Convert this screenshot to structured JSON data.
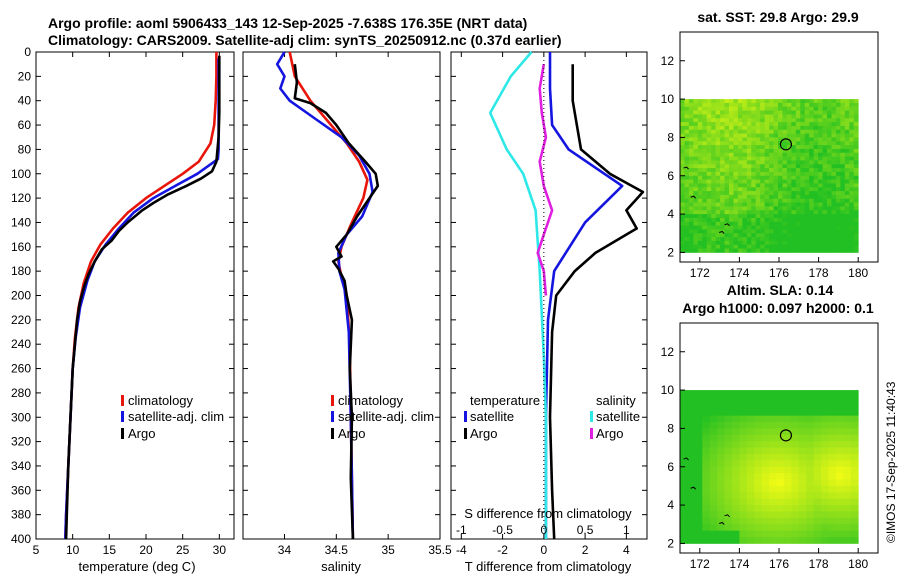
{
  "title_line1": "Argo profile: aoml 5906433_143 12-Sep-2025 -7.638S 176.35E (NRT data)",
  "title_line2": "Climatology: CARS2009. Satellite-adj clim: synTS_20250912.nc (0.37d earlier)",
  "stamp": "©IMOS 17-Sep-2025 11:40:43",
  "colors": {
    "climatology": "#e8150a",
    "satellite": "#1515e0",
    "argo": "#000000",
    "cyan": "#2ee8e8",
    "magenta": "#e020e0",
    "map_green": "#22c022",
    "map_yellow": "#ffff00"
  },
  "chart_data": [
    {
      "id": "temperature",
      "type": "line",
      "xlabel": "temperature (deg C)",
      "ylabel": "",
      "xlim": [
        5,
        32
      ],
      "ylim": [
        400,
        0
      ],
      "xticks": [
        5,
        10,
        15,
        20,
        25,
        30
      ],
      "xtick_labels": [
        "5",
        "10",
        "15",
        "20",
        "25",
        "30"
      ],
      "yticks": [
        0,
        20,
        40,
        60,
        80,
        100,
        120,
        140,
        160,
        180,
        200,
        220,
        240,
        260,
        280,
        300,
        320,
        340,
        360,
        380,
        400
      ],
      "ytick_labels": [
        "0",
        "20",
        "40",
        "60",
        "80",
        "100",
        "120",
        "140",
        "160",
        "180",
        "200",
        "220",
        "240",
        "260",
        "280",
        "300",
        "320",
        "340",
        "360",
        "380",
        "400"
      ],
      "legend": [
        "climatology",
        "satellite-adj. clim",
        "Argo"
      ],
      "series": [
        {
          "name": "climatology",
          "color": "#e8150a",
          "points": [
            [
              29.6,
              0
            ],
            [
              29.6,
              20
            ],
            [
              29.5,
              40
            ],
            [
              29.3,
              60
            ],
            [
              28.8,
              75
            ],
            [
              27.2,
              90
            ],
            [
              25,
              100
            ],
            [
              22.5,
              110
            ],
            [
              20,
              120
            ],
            [
              17.5,
              132
            ],
            [
              15.5,
              145
            ],
            [
              13.8,
              158
            ],
            [
              12.5,
              172
            ],
            [
              11.5,
              190
            ],
            [
              10.8,
              210
            ],
            [
              10.3,
              235
            ],
            [
              10,
              260
            ],
            [
              9.7,
              300
            ],
            [
              9.4,
              340
            ],
            [
              9.1,
              380
            ],
            [
              9,
              400
            ]
          ]
        },
        {
          "name": "satellite-adj. clim",
          "color": "#1515e0",
          "points": [
            [
              29.9,
              5
            ],
            [
              29.9,
              30
            ],
            [
              29.9,
              60
            ],
            [
              29.9,
              80
            ],
            [
              29.8,
              88
            ],
            [
              27,
              100
            ],
            [
              24,
              110
            ],
            [
              21,
              120
            ],
            [
              18.3,
              132
            ],
            [
              16.3,
              145
            ],
            [
              14.5,
              158
            ],
            [
              13,
              172
            ],
            [
              12,
              188
            ],
            [
              11,
              210
            ],
            [
              10.4,
              235
            ],
            [
              10,
              260
            ],
            [
              9.7,
              300
            ],
            [
              9.4,
              340
            ],
            [
              9.1,
              380
            ],
            [
              9,
              400
            ]
          ]
        },
        {
          "name": "Argo",
          "color": "#000000",
          "points": [
            [
              30,
              3
            ],
            [
              30,
              20
            ],
            [
              30,
              50
            ],
            [
              29.9,
              70
            ],
            [
              29.6,
              90
            ],
            [
              29,
              98
            ],
            [
              27.5,
              104
            ],
            [
              25.5,
              110
            ],
            [
              23,
              117
            ],
            [
              21,
              124
            ],
            [
              19.5,
              130
            ],
            [
              17.5,
              140
            ],
            [
              16.3,
              147
            ],
            [
              15.3,
              155
            ],
            [
              14,
              162
            ],
            [
              13,
              172
            ],
            [
              12.2,
              182
            ],
            [
              11.6,
              192
            ],
            [
              11,
              205
            ],
            [
              10.6,
              220
            ],
            [
              10.3,
              240
            ],
            [
              10,
              260
            ],
            [
              9.7,
              300
            ],
            [
              9.4,
              340
            ],
            [
              9.2,
              380
            ],
            [
              9.1,
              400
            ]
          ]
        }
      ]
    },
    {
      "id": "salinity",
      "type": "line",
      "xlabel": "salinity",
      "xlim": [
        33.6,
        35.5
      ],
      "ylim": [
        400,
        0
      ],
      "xticks": [
        34,
        34.5,
        35,
        35.5
      ],
      "xtick_labels": [
        "34",
        "34.5",
        "35",
        "35.5"
      ],
      "legend": [
        "climatology",
        "satellite-adj. clim",
        "Argo"
      ],
      "series": [
        {
          "name": "climatology",
          "color": "#e8150a",
          "points": [
            [
              34.05,
              0
            ],
            [
              34.1,
              20
            ],
            [
              34.25,
              40
            ],
            [
              34.45,
              60
            ],
            [
              34.6,
              75
            ],
            [
              34.72,
              90
            ],
            [
              34.8,
              105
            ],
            [
              34.76,
              120
            ],
            [
              34.65,
              140
            ],
            [
              34.55,
              160
            ],
            [
              34.52,
              172
            ],
            [
              34.55,
              185
            ],
            [
              34.6,
              200
            ],
            [
              34.63,
              240
            ],
            [
              34.64,
              300
            ],
            [
              34.65,
              350
            ],
            [
              34.66,
              400
            ]
          ]
        },
        {
          "name": "satellite-adj. clim",
          "color": "#1515e0",
          "points": [
            [
              34,
              0
            ],
            [
              33.93,
              10
            ],
            [
              34,
              20
            ],
            [
              33.96,
              30
            ],
            [
              34.05,
              40
            ],
            [
              34.3,
              55
            ],
            [
              34.55,
              70
            ],
            [
              34.72,
              85
            ],
            [
              34.82,
              100
            ],
            [
              34.85,
              115
            ],
            [
              34.75,
              135
            ],
            [
              34.6,
              150
            ],
            [
              34.52,
              165
            ],
            [
              34.53,
              180
            ],
            [
              34.58,
              195
            ],
            [
              34.62,
              230
            ],
            [
              34.64,
              300
            ],
            [
              34.65,
              350
            ],
            [
              34.66,
              400
            ]
          ]
        },
        {
          "name": "Argo",
          "color": "#000000",
          "points": [
            [
              34.1,
              10
            ],
            [
              34.12,
              25
            ],
            [
              34.1,
              38
            ],
            [
              34.25,
              42
            ],
            [
              34.4,
              50
            ],
            [
              34.5,
              60
            ],
            [
              34.62,
              75
            ],
            [
              34.78,
              90
            ],
            [
              34.88,
              100
            ],
            [
              34.9,
              110
            ],
            [
              34.82,
              120
            ],
            [
              34.7,
              135
            ],
            [
              34.6,
              150
            ],
            [
              34.5,
              160
            ],
            [
              34.55,
              168
            ],
            [
              34.47,
              172
            ],
            [
              34.52,
              178
            ],
            [
              34.58,
              188
            ],
            [
              34.6,
              200
            ],
            [
              34.65,
              220
            ],
            [
              34.63,
              260
            ],
            [
              34.65,
              300
            ],
            [
              34.64,
              350
            ],
            [
              34.66,
              400
            ]
          ]
        }
      ]
    },
    {
      "id": "differences",
      "type": "line",
      "xlabel": "T difference from climatology",
      "xlabel_top": "S difference from climatology",
      "xlim": [
        -4.5,
        5
      ],
      "ylim": [
        400,
        0
      ],
      "xticks": [
        -4,
        -2,
        0,
        2,
        4
      ],
      "xtick_labels": [
        "-4",
        "-2",
        "0",
        "2",
        "4"
      ],
      "s_xticks_tvalue": [
        -4,
        -2,
        0,
        2,
        4
      ],
      "s_xtick_labels": [
        "-1",
        "-0.5",
        "0",
        "0.5",
        "1"
      ],
      "legend_headers": [
        "temperature",
        "salinity"
      ],
      "legend_left": [
        "satellite",
        "Argo"
      ],
      "legend_right": [
        "satellite",
        "Argo"
      ],
      "series": [
        {
          "name": "temperature satellite",
          "color": "#1515e0",
          "points": [
            [
              0.3,
              0
            ],
            [
              0.3,
              30
            ],
            [
              0.4,
              60
            ],
            [
              1.2,
              80
            ],
            [
              3.8,
              110
            ],
            [
              2,
              140
            ],
            [
              0.5,
              180
            ],
            [
              0.2,
              220
            ],
            [
              0.1,
              300
            ],
            [
              0.1,
              400
            ]
          ]
        },
        {
          "name": "temperature Argo",
          "color": "#000000",
          "points": [
            [
              1.4,
              10
            ],
            [
              1.4,
              40
            ],
            [
              1.8,
              80
            ],
            [
              3.2,
              100
            ],
            [
              4.8,
              115
            ],
            [
              4,
              130
            ],
            [
              4.5,
              145
            ],
            [
              2.5,
              165
            ],
            [
              1.5,
              180
            ],
            [
              0.6,
              200
            ],
            [
              0.4,
              230
            ],
            [
              0.3,
              300
            ],
            [
              0.4,
              360
            ],
            [
              0.5,
              400
            ]
          ]
        },
        {
          "name": "salinity satellite",
          "color": "#2ee8e8",
          "points": [
            [
              -0.6,
              0
            ],
            [
              -1.6,
              20
            ],
            [
              -2.6,
              50
            ],
            [
              -1.8,
              80
            ],
            [
              -1,
              100
            ],
            [
              -0.4,
              130
            ],
            [
              -0.2,
              180
            ],
            [
              0,
              250
            ],
            [
              0.1,
              300
            ],
            [
              0.1,
              400
            ]
          ]
        },
        {
          "name": "salinity Argo",
          "color": "#e020e0",
          "points": [
            [
              0,
              10
            ],
            [
              -0.2,
              30
            ],
            [
              -0.1,
              50
            ],
            [
              0.1,
              70
            ],
            [
              -0.2,
              90
            ],
            [
              0,
              110
            ],
            [
              0.4,
              130
            ],
            [
              0,
              150
            ],
            [
              -0.3,
              165
            ],
            [
              0,
              180
            ],
            [
              0.1,
              200
            ]
          ]
        }
      ]
    },
    {
      "id": "sst_map",
      "type": "heatmap",
      "title": "sat. SST: 29.8 Argo: 29.9",
      "xlim": [
        171,
        181
      ],
      "ylim": [
        1.5,
        13.5
      ],
      "xticks": [
        172,
        174,
        176,
        178,
        180
      ],
      "xtick_labels": [
        "172",
        "174",
        "176",
        "178",
        "180"
      ],
      "yticks": [
        2,
        4,
        6,
        8,
        10,
        12
      ],
      "ytick_labels": [
        "2",
        "4",
        "6",
        "8",
        "10",
        "12"
      ],
      "data_extent": {
        "x": [
          171,
          180
        ],
        "y": [
          2,
          10
        ]
      },
      "argo_position": [
        176.35,
        7.638
      ]
    },
    {
      "id": "sla_map",
      "type": "heatmap",
      "title_line1": "Altim. SLA: 0.14",
      "title_line2": "Argo h1000: 0.097 h2000: 0.1",
      "xlim": [
        171,
        181
      ],
      "ylim": [
        1.5,
        13.5
      ],
      "xticks": [
        172,
        174,
        176,
        178,
        180
      ],
      "xtick_labels": [
        "172",
        "174",
        "176",
        "178",
        "180"
      ],
      "yticks": [
        2,
        4,
        6,
        8,
        10,
        12
      ],
      "ytick_labels": [
        "2",
        "4",
        "6",
        "8",
        "10",
        "12"
      ],
      "data_extent": {
        "x": [
          171,
          180
        ],
        "y": [
          2,
          10
        ]
      },
      "argo_position": [
        176.35,
        7.638
      ]
    }
  ]
}
